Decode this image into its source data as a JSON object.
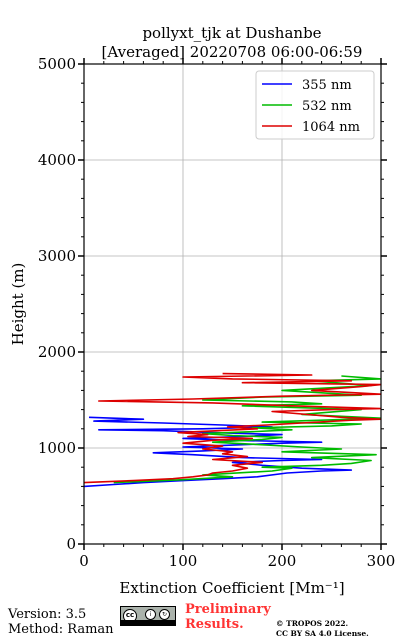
{
  "chart_data": {
    "type": "line",
    "title_line1": "pollyxt_tjk at Dushanbe",
    "title_line2": "[Averaged] 20220708 06:00-06:59",
    "xlabel": "Extinction Coefficient [Mm⁻¹]",
    "ylabel": "Height (m)",
    "xlim": [
      0,
      300
    ],
    "ylim": [
      0,
      5000
    ],
    "xticks": [
      0,
      100,
      200,
      300
    ],
    "yticks": [
      0,
      1000,
      2000,
      3000,
      4000,
      5000
    ],
    "xtick_labels": [
      "0",
      "100",
      "200",
      "300"
    ],
    "ytick_labels": [
      "0",
      "1000",
      "2000",
      "3000",
      "4000",
      "5000"
    ],
    "grid": true,
    "legend_position": "top-right",
    "series": [
      {
        "name": "355 nm",
        "color": "#0000ff",
        "points": [
          [
            0,
            600
          ],
          [
            30,
            620
          ],
          [
            60,
            640
          ],
          [
            100,
            660
          ],
          [
            140,
            680
          ],
          [
            175,
            700
          ],
          [
            205,
            740
          ],
          [
            240,
            760
          ],
          [
            270,
            770
          ],
          [
            220,
            790
          ],
          [
            180,
            820
          ],
          [
            150,
            850
          ],
          [
            200,
            870
          ],
          [
            240,
            880
          ],
          [
            160,
            900
          ],
          [
            110,
            930
          ],
          [
            70,
            950
          ],
          [
            120,
            970
          ],
          [
            160,
            990
          ],
          [
            100,
            1010
          ],
          [
            150,
            1030
          ],
          [
            200,
            1050
          ],
          [
            240,
            1060
          ],
          [
            150,
            1080
          ],
          [
            100,
            1100
          ],
          [
            160,
            1120
          ],
          [
            200,
            1140
          ],
          [
            130,
            1160
          ],
          [
            80,
            1180
          ],
          [
            15,
            1190
          ],
          [
            120,
            1200
          ],
          [
            190,
            1220
          ],
          [
            140,
            1240
          ],
          [
            80,
            1260
          ],
          [
            10,
            1280
          ],
          [
            60,
            1300
          ],
          [
            5,
            1320
          ]
        ]
      },
      {
        "name": "532 nm",
        "color": "#00bb00",
        "points": [
          [
            30,
            640
          ],
          [
            100,
            670
          ],
          [
            150,
            700
          ],
          [
            120,
            720
          ],
          [
            190,
            760
          ],
          [
            210,
            790
          ],
          [
            180,
            800
          ],
          [
            240,
            820
          ],
          [
            270,
            840
          ],
          [
            290,
            870
          ],
          [
            230,
            900
          ],
          [
            295,
            930
          ],
          [
            200,
            960
          ],
          [
            260,
            990
          ],
          [
            220,
            1010
          ],
          [
            170,
            1040
          ],
          [
            130,
            1060
          ],
          [
            180,
            1090
          ],
          [
            200,
            1110
          ],
          [
            150,
            1130
          ],
          [
            120,
            1150
          ],
          [
            170,
            1170
          ],
          [
            210,
            1190
          ],
          [
            170,
            1210
          ],
          [
            250,
            1230
          ],
          [
            280,
            1250
          ],
          [
            180,
            1270
          ],
          [
            240,
            1290
          ],
          [
            300,
            1310
          ],
          [
            220,
            1350
          ],
          [
            280,
            1400
          ],
          [
            160,
            1440
          ],
          [
            240,
            1460
          ],
          [
            210,
            1480
          ],
          [
            120,
            1500
          ],
          [
            180,
            1530
          ],
          [
            280,
            1550
          ],
          [
            200,
            1600
          ],
          [
            290,
            1650
          ],
          [
            230,
            1700
          ],
          [
            300,
            1720
          ],
          [
            260,
            1750
          ]
        ]
      },
      {
        "name": "1064 nm",
        "color": "#dd0000",
        "points": [
          [
            0,
            640
          ],
          [
            50,
            660
          ],
          [
            90,
            680
          ],
          [
            110,
            700
          ],
          [
            125,
            720
          ],
          [
            130,
            740
          ],
          [
            150,
            760
          ],
          [
            165,
            790
          ],
          [
            150,
            820
          ],
          [
            180,
            850
          ],
          [
            130,
            880
          ],
          [
            165,
            910
          ],
          [
            140,
            940
          ],
          [
            150,
            960
          ],
          [
            120,
            990
          ],
          [
            140,
            1020
          ],
          [
            100,
            1050
          ],
          [
            130,
            1080
          ],
          [
            170,
            1100
          ],
          [
            105,
            1120
          ],
          [
            125,
            1140
          ],
          [
            95,
            1160
          ],
          [
            135,
            1180
          ],
          [
            175,
            1200
          ],
          [
            145,
            1220
          ],
          [
            185,
            1240
          ],
          [
            220,
            1260
          ],
          [
            270,
            1290
          ],
          [
            300,
            1300
          ],
          [
            260,
            1320
          ],
          [
            190,
            1380
          ],
          [
            250,
            1400
          ],
          [
            300,
            1410
          ],
          [
            210,
            1440
          ],
          [
            130,
            1470
          ],
          [
            15,
            1490
          ],
          [
            110,
            1510
          ],
          [
            200,
            1540
          ],
          [
            300,
            1560
          ],
          [
            230,
            1600
          ],
          [
            280,
            1640
          ],
          [
            300,
            1660
          ],
          [
            160,
            1680
          ],
          [
            270,
            1700
          ],
          [
            150,
            1720
          ],
          [
            100,
            1740
          ],
          [
            230,
            1760
          ],
          [
            140,
            1775
          ]
        ]
      }
    ]
  },
  "footer": {
    "version": "Version: 3.5",
    "method": "Method: Raman",
    "preliminary_line1": "Preliminary",
    "preliminary_line2": "Results.",
    "copyright_line1": "© TROPOS 2022.",
    "copyright_line2": "CC BY SA 4.0 License.",
    "cc_logo": "cc-by-sa-logo"
  }
}
